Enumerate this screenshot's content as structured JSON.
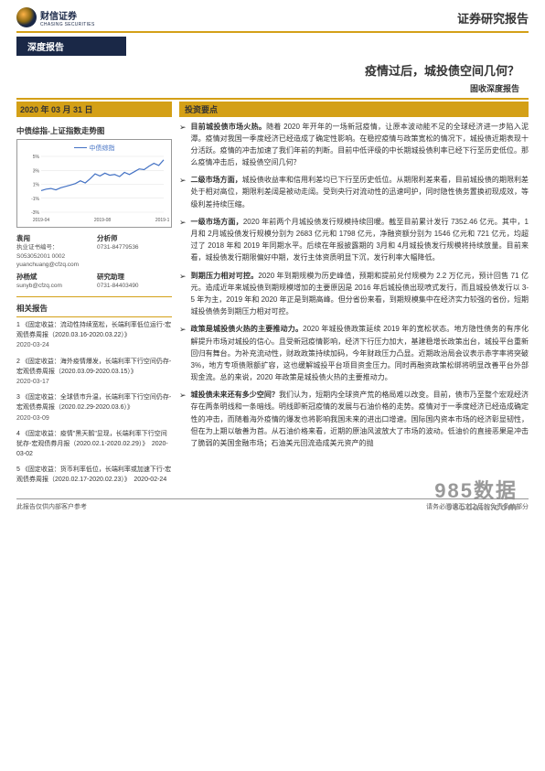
{
  "header": {
    "logo_cn": "财信证券",
    "logo_en": "CHASING SECURITIES",
    "doc_type": "证券研究报告"
  },
  "category_banner": "深度报告",
  "title": "疫情过后，城投债空间几何？",
  "subtitle": "固收深度报告",
  "date_bar": "2020 年 03 月 31 日",
  "chart": {
    "heading": "中债综指-上证指数走势图",
    "legend": "中债综指",
    "x_labels": [
      "2019-04",
      "2019-08",
      "2019-12"
    ],
    "y_labels": [
      "-3%",
      "-1%",
      "1%",
      "3%",
      "5%"
    ],
    "y_min": -3,
    "y_max": 5,
    "line_color": "#4472c4",
    "grid_color": "#cccccc",
    "points": [
      [
        0,
        0.1
      ],
      [
        0.04,
        0.3
      ],
      [
        0.08,
        0.4
      ],
      [
        0.12,
        0.2
      ],
      [
        0.16,
        0.5
      ],
      [
        0.2,
        0.7
      ],
      [
        0.24,
        0.9
      ],
      [
        0.28,
        1.1
      ],
      [
        0.32,
        1.5
      ],
      [
        0.36,
        1.2
      ],
      [
        0.4,
        1.8
      ],
      [
        0.44,
        2.5
      ],
      [
        0.48,
        2.2
      ],
      [
        0.52,
        2.6
      ],
      [
        0.56,
        2.3
      ],
      [
        0.6,
        2.4
      ],
      [
        0.64,
        2.1
      ],
      [
        0.68,
        2.7
      ],
      [
        0.72,
        2.4
      ],
      [
        0.76,
        2.8
      ],
      [
        0.8,
        3.2
      ],
      [
        0.84,
        3.1
      ],
      [
        0.88,
        3.6
      ],
      [
        0.92,
        4.0
      ],
      [
        0.96,
        3.7
      ],
      [
        1.0,
        4.5
      ]
    ]
  },
  "analysts": {
    "left_name": "袁闯",
    "left_id": "执业证书编号：S053052001 0002",
    "left_email": "yuanchuang@cfzq.com",
    "right_title": "分析师",
    "right_phone": "0731-84779536",
    "left2_name": "孙杨斌",
    "left2_email": "sunyb@cfzq.com",
    "right2_title": "研究助理",
    "right2_phone": "0731-84403490"
  },
  "related": {
    "heading": "相关报告",
    "items": [
      {
        "idx": "1",
        "text": "《固定收益：流动性持续宽松，长端利率低位运行-宏观债券周报（2020.03.16-2020.03.22）》",
        "date": "2020-03-24"
      },
      {
        "idx": "2",
        "text": "《固定收益：海外疫情爆发，长端利率下行空间仍存-宏观债券周报（2020.03.09-2020.03.15）》",
        "date": "2020-03-17"
      },
      {
        "idx": "3",
        "text": "《固定收益：全球债市升温，长端利率下行空间仍存-宏观债券周报（2020.02.29-2020.03.6）》",
        "date": "2020-03-09"
      },
      {
        "idx": "4",
        "text": "《固定收益：疫情\"黑天鹅\"显现，长端利率下行空间犹存-宏观债券月报（2020.02.1-2020.02.29）》　2020-03-02",
        "date": ""
      },
      {
        "idx": "5",
        "text": "《固定收益：货币利率低位，长端利率或加速下行-宏观债券周报（2020.02.17-2020.02.23）》　2020-02-24",
        "date": ""
      }
    ]
  },
  "invest": {
    "heading": "投资要点",
    "bullets": [
      {
        "bold": "目前城投债市场火热。",
        "text": "随着 2020 年开年的一场新冠疫情，让原本波动能不足的全球经济进一步陷入泥潭。疫情对我国一季度经济已经造成了确定性影响。在稳控疫情与政策宽松的情况下，城投债近期表现十分活跃。疫情的冲击加速了我们年前的判断。目前中低评级的中长期城投债利率已经下行至历史低位。那么疫情冲击后，城投债空间几何？"
      },
      {
        "bold": "二级市场方面，",
        "text": "城投债收益率和信用利差均已下行至历史低位。从期限利差来看，目前城投债的期限利差处于相对高位，期限利差阔是被动走阔。受到央行对流动性的迅速呵护，同时隐性债务置换初现成效，等级利差持续压缩。"
      },
      {
        "bold": "一级市场方面，",
        "text": "2020 年前两个月城投债发行规模持续回暖。截至目前累计发行 7352.46 亿元。其中，1月和 2月城投债发行规模分别为 2683 亿元和 1798 亿元，净融资额分别为 1546 亿元和 721 亿元，均超过了 2018 年和 2019 年同期水平。后续在年报披露期的 3月和 4月城投债发行规模将持续放量。目前来看，城投债发行期限偏好中期，发行主体资质明显下沉，发行利率大幅降低。"
      },
      {
        "bold": "到期压力相对可控。",
        "text": "2020 年到期规模为历史峰值，预期和提前兑付规模为 2.2 万亿元，预计回售 71 亿元。造成近年来城投债到期规模增加的主要原因是 2016 年后城投债出现喷式发行，而且城投债发行以 3-5 年为主，2019 年和 2020 年正是到期高峰。但分省份来看，到期规模集中在经济实力较强的省份，短期城投债债务到期压力相对可控。"
      },
      {
        "bold": "政策是城投债火热的主要推动力。",
        "text": "2020 年城投债政策延续 2019 年的宽松状态。地方隐性债务的有序化解提升市场对城投的信心。且受新冠疫情影响，经济下行压力加大，基建稳增长政策出台，城投平台重新回归有舞台。为补充流动性，财政政策持续加码，今年财政压力凸显。近期政治局会议表示赤字率将突破 3%，地方专项债限额扩容，这也缓解城投平台项目资金压力。同时再融资政策松绑将明显改善平台外部现金流。总的来说，2020 年政策是城投债火热的主要推动力。"
      },
      {
        "bold": "城投债未来还有多少空间？",
        "text": "我们认为，短期内全球资产荒的格局难以改变。目前，债市乃至整个宏观经济存在两条明线和一条暗线。明线即新冠疫情的发展与石油价格的走势。疫情对于一季度经济已经造成确定性的冲击，而随着海外疫情的爆发也将影响我国未来的进出口增速。国际国内资本市场的经济彰显韧性，但在为上期以敏善为首。从石油价格来看，近期的原油风波放大了市场的波动。低油价的直接恶果是冲击了脆弱的美国金融市场；石油美元回流造成美元资产的抛"
      }
    ]
  },
  "footer": {
    "left": "此报告仅供内部客户参考",
    "right": "请务必阅读正文之后的免责条款部分"
  },
  "watermark": {
    "main": "985数据",
    "sub": "985data.com"
  }
}
